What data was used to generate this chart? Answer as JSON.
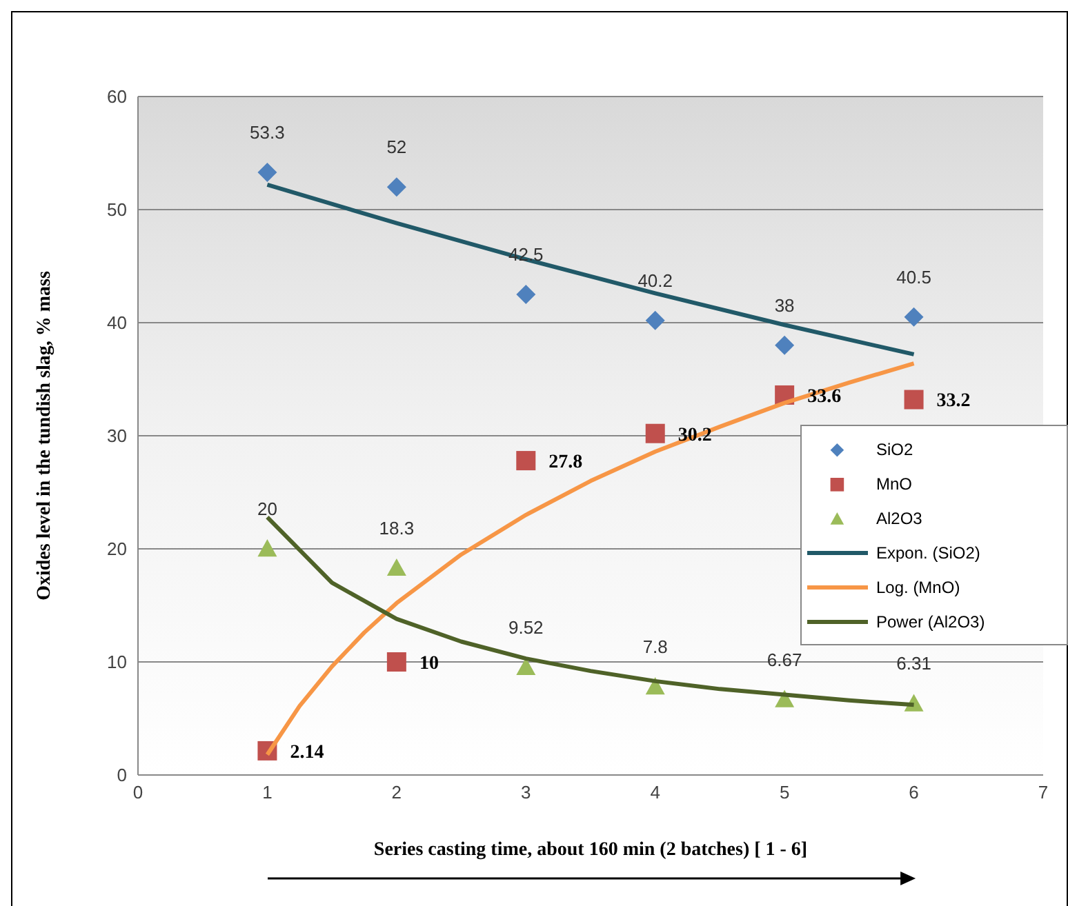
{
  "chart_data": {
    "type": "scatter",
    "xlabel": "Series casting time, about 160 min (2 batches)  [ 1 - 6]",
    "ylabel": "Oxides level in the tundish slag, % mass",
    "x": [
      1,
      2,
      3,
      4,
      5,
      6
    ],
    "xlim": [
      0,
      7
    ],
    "xticks": [
      0,
      1,
      2,
      3,
      4,
      5,
      6,
      7
    ],
    "ylim": [
      0,
      60
    ],
    "yticks": [
      0,
      10,
      20,
      30,
      40,
      50,
      60
    ],
    "grid": "y",
    "legend": "right",
    "series": [
      {
        "name": "SiO2",
        "marker": "diamond",
        "color": "#4f81bd",
        "values": [
          53.3,
          52,
          42.5,
          40.2,
          38,
          40.5
        ],
        "value_labels": [
          "53.3",
          "52",
          "42.5",
          "40.2",
          "38",
          "40.5"
        ]
      },
      {
        "name": "MnO",
        "marker": "square",
        "color": "#c0504d",
        "values": [
          2.14,
          10,
          27.8,
          30.2,
          33.6,
          33.2
        ],
        "value_labels": [
          "2.14",
          "10",
          "27.8",
          "30.2",
          "33.6",
          "33.2"
        ]
      },
      {
        "name": "Al2O3",
        "marker": "triangle",
        "color": "#9bbb59",
        "values": [
          20,
          18.3,
          9.52,
          7.8,
          6.67,
          6.31
        ],
        "value_labels": [
          "20",
          "18.3",
          "9.52",
          "7.8",
          "6.67",
          "6.31"
        ]
      },
      {
        "name": "Expon. (SiO2)",
        "type": "line",
        "marker": "none",
        "color": "#215968",
        "x": [
          1,
          2,
          3,
          4,
          5,
          6
        ],
        "values": [
          52.2,
          48.8,
          45.6,
          42.6,
          39.8,
          37.2
        ]
      },
      {
        "name": "Log. (MnO)",
        "type": "line",
        "marker": "none",
        "color": "#f79646",
        "x": [
          1,
          1.25,
          1.5,
          1.75,
          2,
          2.5,
          3,
          3.5,
          4,
          4.5,
          5,
          5.5,
          6
        ],
        "values": [
          1.8,
          6.1,
          9.6,
          12.6,
          15.2,
          19.5,
          23.0,
          26.0,
          28.6,
          30.8,
          32.9,
          34.7,
          36.4
        ]
      },
      {
        "name": "Power (Al2O3)",
        "type": "line",
        "marker": "none",
        "color": "#4f6228",
        "x": [
          1,
          1.5,
          2,
          2.5,
          3,
          3.5,
          4,
          4.5,
          5,
          5.5,
          6
        ],
        "values": [
          22.8,
          17.0,
          13.8,
          11.8,
          10.3,
          9.2,
          8.3,
          7.6,
          7.1,
          6.6,
          6.2
        ]
      }
    ]
  }
}
